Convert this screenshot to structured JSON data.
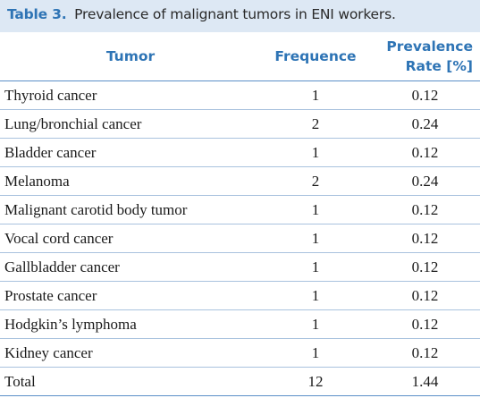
{
  "caption": {
    "label": "Table 3.",
    "text": "Prevalence of malignant tumors in ENI workers."
  },
  "header": {
    "tumor": "Tumor",
    "frequence": "Frequence",
    "prevalence_line1": "Prevalence",
    "prevalence_line2": "Rate [%]"
  },
  "rows": [
    {
      "tumor": "Thyroid cancer",
      "frequence": "1",
      "prevalence": "0.12"
    },
    {
      "tumor": "Lung/bronchial cancer",
      "frequence": "2",
      "prevalence": "0.24"
    },
    {
      "tumor": "Bladder cancer",
      "frequence": "1",
      "prevalence": "0.12"
    },
    {
      "tumor": "Melanoma",
      "frequence": "2",
      "prevalence": "0.24"
    },
    {
      "tumor": "Malignant carotid body tumor",
      "frequence": "1",
      "prevalence": "0.12"
    },
    {
      "tumor": "Vocal cord cancer",
      "frequence": "1",
      "prevalence": "0.12"
    },
    {
      "tumor": "Gallbladder cancer",
      "frequence": "1",
      "prevalence": "0.12"
    },
    {
      "tumor": "Prostate cancer",
      "frequence": "1",
      "prevalence": "0.12"
    },
    {
      "tumor": "Hodgkin’s lymphoma",
      "frequence": "1",
      "prevalence": "0.12"
    },
    {
      "tumor": "Kidney cancer",
      "frequence": "1",
      "prevalence": "0.12"
    }
  ],
  "total": {
    "label": "Total",
    "frequence": "12",
    "prevalence": "1.44"
  },
  "colors": {
    "accent": "#2e74b5",
    "caption_background": "#dde8f4",
    "rule": "#a9c2de"
  }
}
